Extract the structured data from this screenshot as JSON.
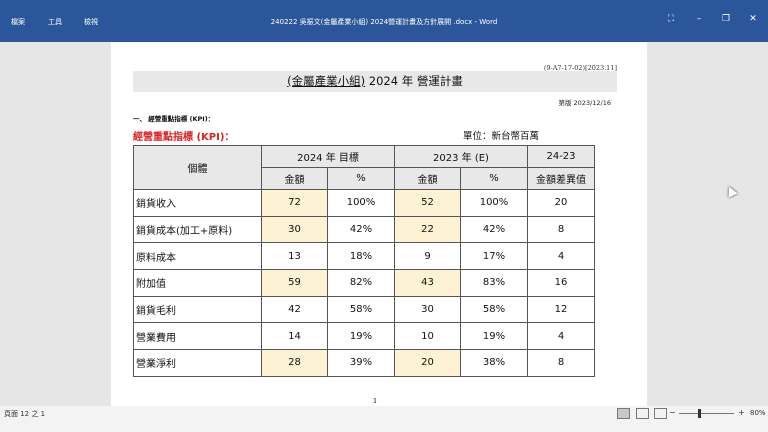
{
  "titlebar": {
    "menu": [
      "檔案",
      "工具",
      "檢視"
    ],
    "window_title": "240222 吳振文(金屬產業小組) 2024營運計畫及方針展開 .docx - Word",
    "icons": [
      "fit-icon",
      "minimize-icon",
      "restore-icon",
      "close-icon"
    ]
  },
  "document": {
    "doc_code": "(9-A7-17-02)[2023.11]",
    "title_group": "(金屬產業小組)",
    "title_rest": "2024 年  營運計畫",
    "edition": "第版  2023/12/16",
    "section": "一、   經營重點指標  (KPI)：",
    "kpi_heading": "經營重點指標 (KPI)：",
    "unit": "單位：新台幣百萬",
    "page_number": "1"
  },
  "table": {
    "header_entity": "個體",
    "header_2024": "2024 年  目標",
    "header_2023": "2023 年 (E)",
    "header_diff": "24-23",
    "sub_amount": "金額",
    "sub_pct": "%",
    "sub_diff": "金額差異值",
    "rows": [
      {
        "name": "銷貨收入",
        "a24": "72",
        "p24": "100%",
        "a23": "52",
        "p23": "100%",
        "diff": "20",
        "hl": true
      },
      {
        "name": "銷貨成本(加工+原料)",
        "a24": "30",
        "p24": "42%",
        "a23": "22",
        "p23": "42%",
        "diff": "8",
        "hl": true
      },
      {
        "name": "原料成本",
        "a24": "13",
        "p24": "18%",
        "a23": "9",
        "p23": "17%",
        "diff": "4",
        "hl": false
      },
      {
        "name": "附加值",
        "a24": "59",
        "p24": "82%",
        "a23": "43",
        "p23": "83%",
        "diff": "16",
        "hl": true
      },
      {
        "name": "銷貨毛利",
        "a24": "42",
        "p24": "58%",
        "a23": "30",
        "p23": "58%",
        "diff": "12",
        "hl": false
      },
      {
        "name": "營業費用",
        "a24": "14",
        "p24": "19%",
        "a23": "10",
        "p23": "19%",
        "diff": "4",
        "hl": false
      },
      {
        "name": "營業淨利",
        "a24": "28",
        "p24": "39%",
        "a23": "20",
        "p23": "38%",
        "diff": "8",
        "hl": true
      }
    ]
  },
  "statusbar": {
    "page_info": "頁面 12 之 1",
    "zoom_minus": "−",
    "zoom_plus": "+",
    "zoom": "80%"
  },
  "colors": {
    "titlebar": "#2b579a",
    "highlight": "#fdf2d3",
    "heading_red": "#d22222"
  }
}
